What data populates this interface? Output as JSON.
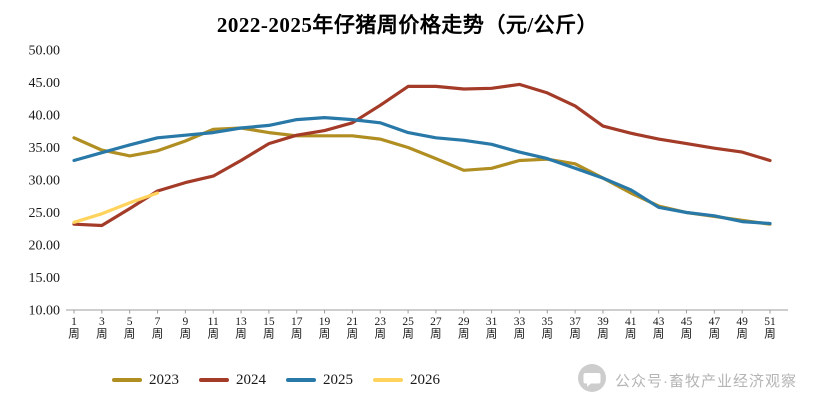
{
  "title": "2022-2025年仔猪周价格走势（元/公斤）",
  "watermark": {
    "icon": "chat-bubble-icon",
    "text": "公众号·畜牧产业经济观察"
  },
  "chart_data": {
    "type": "line",
    "title": "2022-2025年仔猪周价格走势（元/公斤）",
    "xlabel": "",
    "ylabel": "",
    "ylim": [
      10,
      50
    ],
    "y_ticks": [
      50,
      45,
      40,
      35,
      30,
      25,
      20,
      15,
      10
    ],
    "y_tick_format": "two-decimals",
    "grid": false,
    "legend_position": "bottom",
    "x_labels": [
      "1周",
      "3周",
      "5周",
      "7周",
      "9周",
      "11周",
      "13周",
      "15周",
      "17周",
      "19周",
      "21周",
      "23周",
      "25周",
      "27周",
      "29周",
      "31周",
      "33周",
      "35周",
      "37周",
      "39周",
      "41周",
      "43周",
      "45周",
      "47周",
      "49周",
      "51周"
    ],
    "series": [
      {
        "name": "2023",
        "color": "#B08E22",
        "values": [
          36.5,
          34.6,
          33.7,
          34.5,
          36.0,
          37.8,
          38.0,
          37.3,
          36.8,
          36.8,
          36.8,
          36.3,
          35.0,
          33.3,
          31.5,
          31.8,
          33.0,
          33.2,
          32.5,
          30.3,
          28.0,
          26.0,
          25.0,
          24.4,
          23.8,
          23.2
        ]
      },
      {
        "name": "2024",
        "color": "#A33B28",
        "values": [
          23.2,
          23.0,
          25.6,
          28.3,
          29.6,
          30.6,
          33.0,
          35.6,
          36.9,
          37.6,
          38.8,
          41.5,
          44.4,
          44.4,
          44.0,
          44.1,
          44.7,
          43.4,
          41.4,
          38.3,
          37.2,
          36.3,
          35.6,
          34.9,
          34.3,
          33.0
        ]
      },
      {
        "name": "2025",
        "color": "#2878A8",
        "values": [
          33.0,
          34.2,
          35.4,
          36.5,
          36.9,
          37.3,
          38.0,
          38.4,
          39.3,
          39.6,
          39.3,
          38.8,
          37.3,
          36.5,
          36.1,
          35.5,
          34.3,
          33.3,
          31.8,
          30.3,
          28.5,
          25.8,
          25.0,
          24.5,
          23.6,
          23.3
        ]
      },
      {
        "name": "2026",
        "color": "#FFD35C",
        "values": [
          23.5,
          24.8,
          26.5,
          28.0
        ]
      }
    ]
  }
}
